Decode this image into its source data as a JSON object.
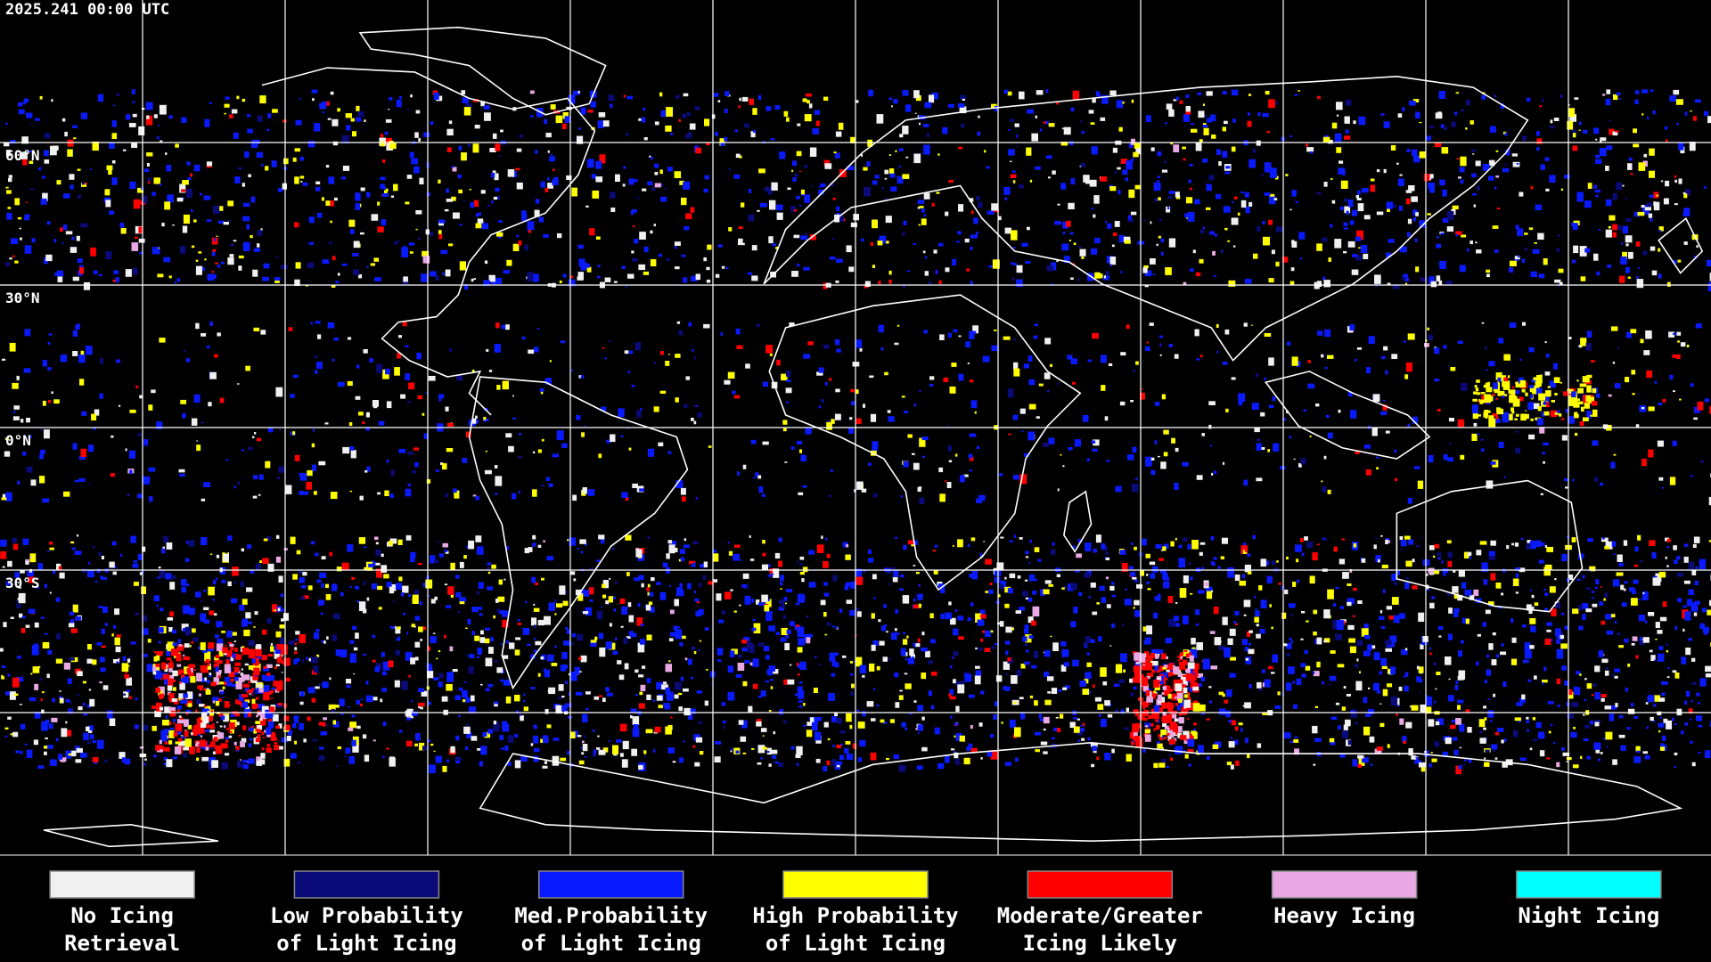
{
  "header": {
    "timestamp": "2025.241 00:00 UTC"
  },
  "map": {
    "latitude_labels": [
      "60°N",
      "30°N",
      "0°N",
      "30°S"
    ]
  },
  "legend": [
    {
      "lines": [
        "No Icing",
        "Retrieval"
      ],
      "color": "#f0f0f0"
    },
    {
      "lines": [
        "Low Probability",
        "of Light Icing"
      ],
      "color": "#0a0a78"
    },
    {
      "lines": [
        "Med.Probability",
        "of Light Icing"
      ],
      "color": "#0a1aff"
    },
    {
      "lines": [
        "High Probability",
        "of Light Icing"
      ],
      "color": "#ffff00"
    },
    {
      "lines": [
        "Moderate/Greater",
        "Icing Likely"
      ],
      "color": "#ff0000"
    },
    {
      "lines": [
        "Heavy Icing"
      ],
      "color": "#e8a8e4"
    },
    {
      "lines": [
        "Night Icing"
      ],
      "color": "#00ffff"
    }
  ]
}
